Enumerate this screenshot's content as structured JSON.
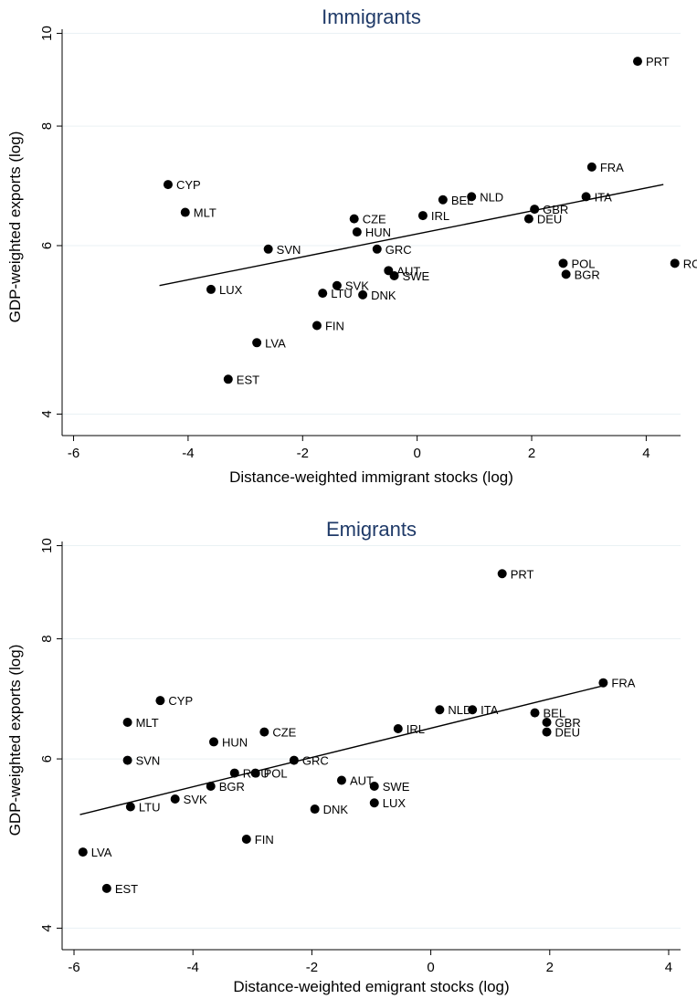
{
  "chart_data": [
    {
      "type": "scatter",
      "title": "Immigrants",
      "xlabel": "Distance-weighted immigrant stocks (log)",
      "ylabel": "GDP-weighted exports (log)",
      "xlim": [
        -6.2,
        4.6
      ],
      "ylim": [
        3.9,
        10.1
      ],
      "y_scale": "log",
      "xticks": [
        -6,
        -4,
        -2,
        0,
        2,
        4
      ],
      "yticks": [
        4,
        6,
        8,
        10
      ],
      "grid": true,
      "fit_line": {
        "x": [
          -4.5,
          4.3
        ],
        "y": [
          5.45,
          6.95
        ]
      },
      "points": [
        {
          "label": "PRT",
          "x": 3.85,
          "y": 9.35
        },
        {
          "label": "FRA",
          "x": 3.05,
          "y": 7.25
        },
        {
          "label": "CYP",
          "x": -4.35,
          "y": 6.95
        },
        {
          "label": "NLD",
          "x": 0.95,
          "y": 6.75
        },
        {
          "label": "ITA",
          "x": 2.95,
          "y": 6.75
        },
        {
          "label": "BEL",
          "x": 0.45,
          "y": 6.7
        },
        {
          "label": "GBR",
          "x": 2.05,
          "y": 6.55
        },
        {
          "label": "MLT",
          "x": -4.05,
          "y": 6.5
        },
        {
          "label": "IRL",
          "x": 0.1,
          "y": 6.45
        },
        {
          "label": "CZE",
          "x": -1.1,
          "y": 6.4
        },
        {
          "label": "DEU",
          "x": 1.95,
          "y": 6.4
        },
        {
          "label": "HUN",
          "x": -1.05,
          "y": 6.2
        },
        {
          "label": "SVN",
          "x": -2.6,
          "y": 5.95
        },
        {
          "label": "GRC",
          "x": -0.7,
          "y": 5.95
        },
        {
          "label": "POL",
          "x": 2.55,
          "y": 5.75
        },
        {
          "label": "RO",
          "x": 4.5,
          "y": 5.75
        },
        {
          "label": "AUT",
          "x": -0.5,
          "y": 5.65
        },
        {
          "label": "BGR",
          "x": 2.6,
          "y": 5.6
        },
        {
          "label": "SWE",
          "x": -0.4,
          "y": 5.58
        },
        {
          "label": "SVK",
          "x": -1.4,
          "y": 5.45
        },
        {
          "label": "LUX",
          "x": -3.6,
          "y": 5.4
        },
        {
          "label": "LTU",
          "x": -1.65,
          "y": 5.35
        },
        {
          "label": "DNK",
          "x": -0.95,
          "y": 5.33
        },
        {
          "label": "FIN",
          "x": -1.75,
          "y": 4.95
        },
        {
          "label": "LVA",
          "x": -2.8,
          "y": 4.75
        },
        {
          "label": "EST",
          "x": -3.3,
          "y": 4.35
        }
      ]
    },
    {
      "type": "scatter",
      "title": "Emigrants",
      "xlabel": "Distance-weighted emigrant stocks (log)",
      "ylabel": "GDP-weighted exports (log)",
      "xlim": [
        -6.2,
        4.2
      ],
      "ylim": [
        3.9,
        10.1
      ],
      "y_scale": "log",
      "xticks": [
        -6,
        -4,
        -2,
        0,
        2,
        4
      ],
      "yticks": [
        4,
        6,
        8,
        10
      ],
      "grid": true,
      "fit_line": {
        "x": [
          -5.9,
          2.9
        ],
        "y": [
          5.25,
          7.15
        ]
      },
      "points": [
        {
          "label": "PRT",
          "x": 1.2,
          "y": 9.35
        },
        {
          "label": "FRA",
          "x": 2.9,
          "y": 7.2
        },
        {
          "label": "CYP",
          "x": -4.55,
          "y": 6.9
        },
        {
          "label": "NLD",
          "x": 0.15,
          "y": 6.75
        },
        {
          "label": "ITA",
          "x": 0.7,
          "y": 6.75
        },
        {
          "label": "BEL",
          "x": 1.75,
          "y": 6.7
        },
        {
          "label": "MLT",
          "x": -5.1,
          "y": 6.55
        },
        {
          "label": "GBR",
          "x": 1.95,
          "y": 6.55
        },
        {
          "label": "IRL",
          "x": -0.55,
          "y": 6.45
        },
        {
          "label": "CZE",
          "x": -2.8,
          "y": 6.4
        },
        {
          "label": "DEU",
          "x": 1.95,
          "y": 6.4
        },
        {
          "label": "HUN",
          "x": -3.65,
          "y": 6.25
        },
        {
          "label": "SVN",
          "x": -5.1,
          "y": 5.98
        },
        {
          "label": "GRC",
          "x": -2.3,
          "y": 5.98
        },
        {
          "label": "POL",
          "x": -2.95,
          "y": 5.8
        },
        {
          "label": "ROU",
          "x": -3.3,
          "y": 5.8
        },
        {
          "label": "AUT",
          "x": -1.5,
          "y": 5.7
        },
        {
          "label": "BGR",
          "x": -3.7,
          "y": 5.62
        },
        {
          "label": "SWE",
          "x": -0.95,
          "y": 5.62
        },
        {
          "label": "SVK",
          "x": -4.3,
          "y": 5.45
        },
        {
          "label": "LUX",
          "x": -0.95,
          "y": 5.4
        },
        {
          "label": "LTU",
          "x": -5.05,
          "y": 5.35
        },
        {
          "label": "DNK",
          "x": -1.95,
          "y": 5.32
        },
        {
          "label": "FIN",
          "x": -3.1,
          "y": 4.95
        },
        {
          "label": "LVA",
          "x": -5.85,
          "y": 4.8
        },
        {
          "label": "EST",
          "x": -5.45,
          "y": 4.4
        }
      ]
    }
  ]
}
